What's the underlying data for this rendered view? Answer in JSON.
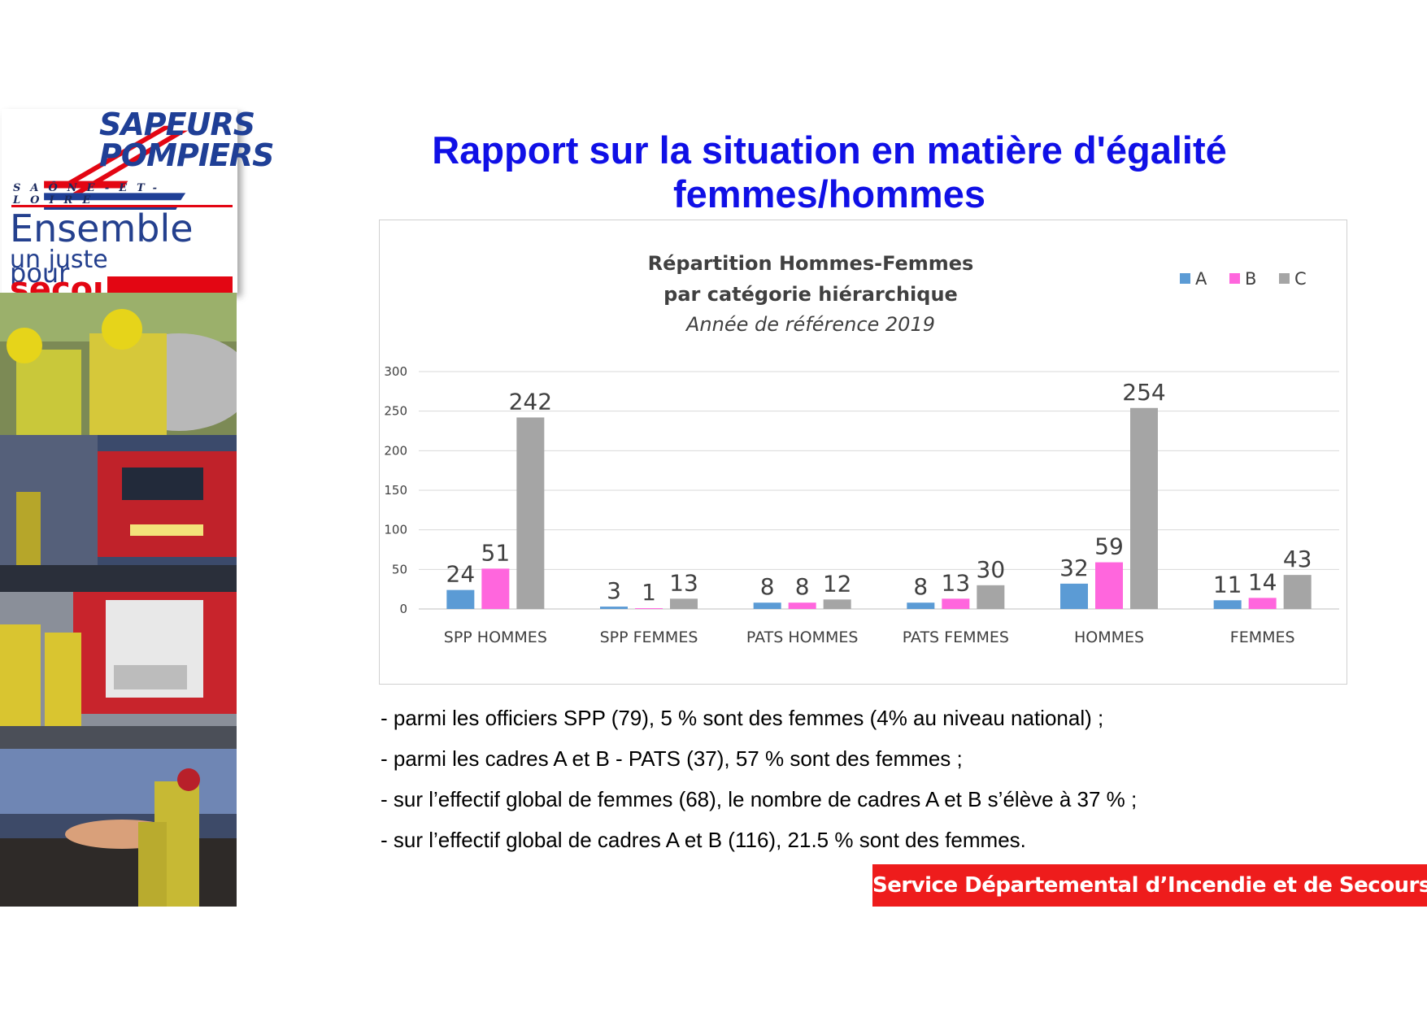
{
  "logo": {
    "line1": "SAPEURS",
    "line2": "POMPIERS",
    "region": "SAÔNE-ET-LOIRE",
    "slogan_a": "Ensemble",
    "slogan_b": "pour",
    "slogan_c": "un juste",
    "slogan_d": "secours"
  },
  "title": {
    "line1": "Rapport sur la situation en matière d'égalité",
    "line2": "femmes/hommes"
  },
  "chart_data": {
    "type": "bar",
    "title_line1": "Répartition Hommes-Femmes",
    "title_line2": "par catégorie hiérarchique",
    "subtitle": "Année de référence 2019",
    "categories": [
      "SPP HOMMES",
      "SPP FEMMES",
      "PATS HOMMES",
      "PATS FEMMES",
      "HOMMES",
      "FEMMES"
    ],
    "series": [
      {
        "name": "A",
        "color": "#5b9bd5",
        "values": [
          24,
          3,
          8,
          8,
          32,
          11
        ]
      },
      {
        "name": "B",
        "color": "#ff66dd",
        "values": [
          51,
          1,
          8,
          13,
          59,
          14
        ]
      },
      {
        "name": "C",
        "color": "#a5a5a5",
        "values": [
          242,
          13,
          12,
          30,
          254,
          43
        ]
      }
    ],
    "yticks": [
      0,
      50,
      100,
      150,
      200,
      250,
      300
    ],
    "ylim": [
      0,
      300
    ],
    "grid": true,
    "legend": "top-right",
    "data_labels": true
  },
  "bullets": [
    "- parmi les officiers SPP (79), 5 % sont des femmes (4% au niveau national) ;",
    "- parmi les cadres A et B - PATS (37), 57 % sont des femmes ;",
    "- sur l’effectif global de femmes (68), le nombre de cadres A et B s’élève à 37 % ;",
    "- sur l’effectif global de cadres A et B (116), 21.5 % sont des femmes."
  ],
  "footer": "Service Départemental d’Incendie et de Secours"
}
